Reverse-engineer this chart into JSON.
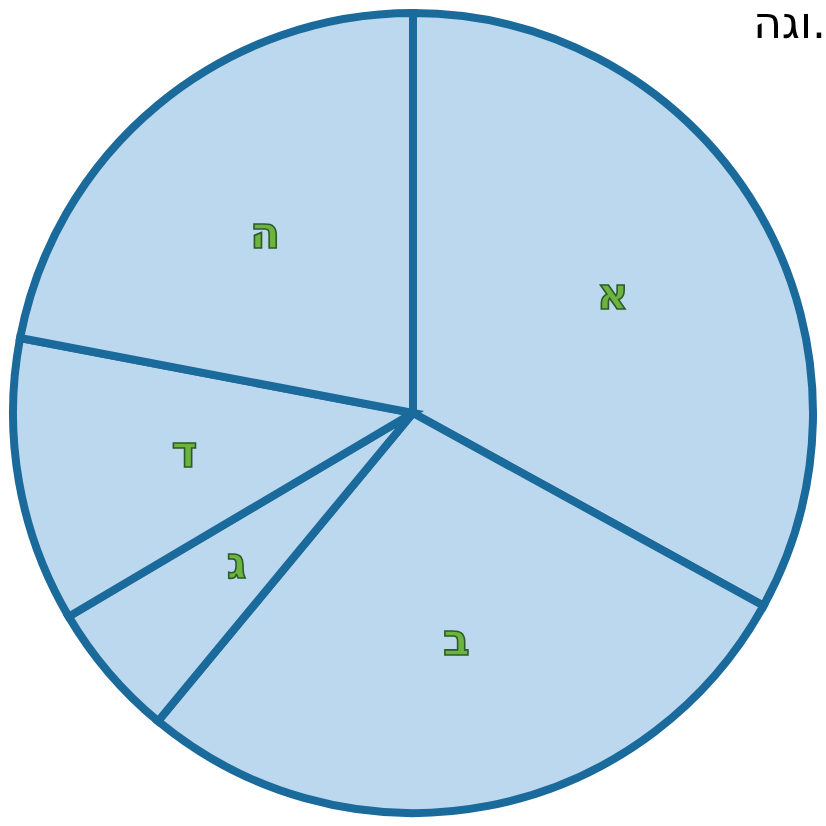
{
  "chart_data": {
    "type": "pie",
    "categories": [
      "א",
      "ב",
      "ג",
      "ד",
      "ה"
    ],
    "values": [
      33,
      28,
      5.5,
      11.5,
      22
    ],
    "colors": [
      "#bcd8ee",
      "#bcd8ee",
      "#bcd8ee",
      "#bcd8ee",
      "#bcd8ee"
    ],
    "annotations": [
      "וגה."
    ]
  }
}
